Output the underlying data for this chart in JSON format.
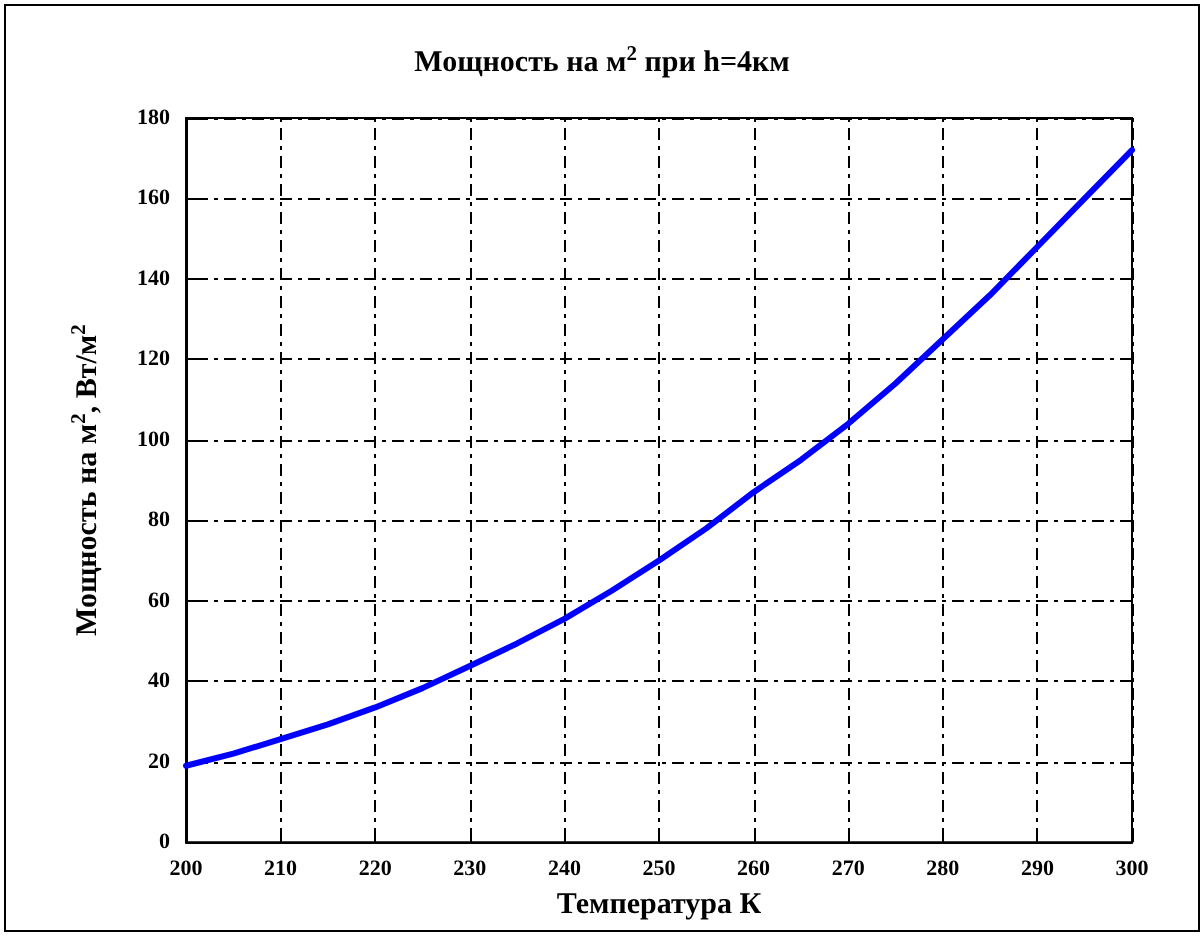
{
  "chart_data": {
    "type": "line",
    "title": "Мощность на м$^{2}$ при h=4км",
    "xlabel": "Температура К",
    "ylabel": "Мощность на м$^{2}$, Вт/м$^{2}$",
    "x": [
      200,
      205,
      210,
      215,
      220,
      225,
      230,
      235,
      240,
      245,
      250,
      255,
      260,
      265,
      270,
      275,
      280,
      285,
      290,
      295,
      300
    ],
    "series": [
      {
        "color": "#0000ff",
        "values": [
          19,
          22,
          25.6,
          29.3,
          33.5,
          38.3,
          43.8,
          49.4,
          55.5,
          62.5,
          70,
          78,
          87,
          95,
          104,
          114,
          125,
          136,
          148,
          160,
          172
        ]
      }
    ],
    "xlim": [
      200,
      300
    ],
    "xticks": [
      200,
      210,
      220,
      230,
      240,
      250,
      260,
      270,
      280,
      290,
      300
    ],
    "ylim": [
      0,
      180
    ],
    "yticks": [
      0,
      20,
      40,
      60,
      80,
      100,
      120,
      140,
      160,
      180
    ],
    "grid": true,
    "line_style": "solid",
    "marker": "none"
  }
}
